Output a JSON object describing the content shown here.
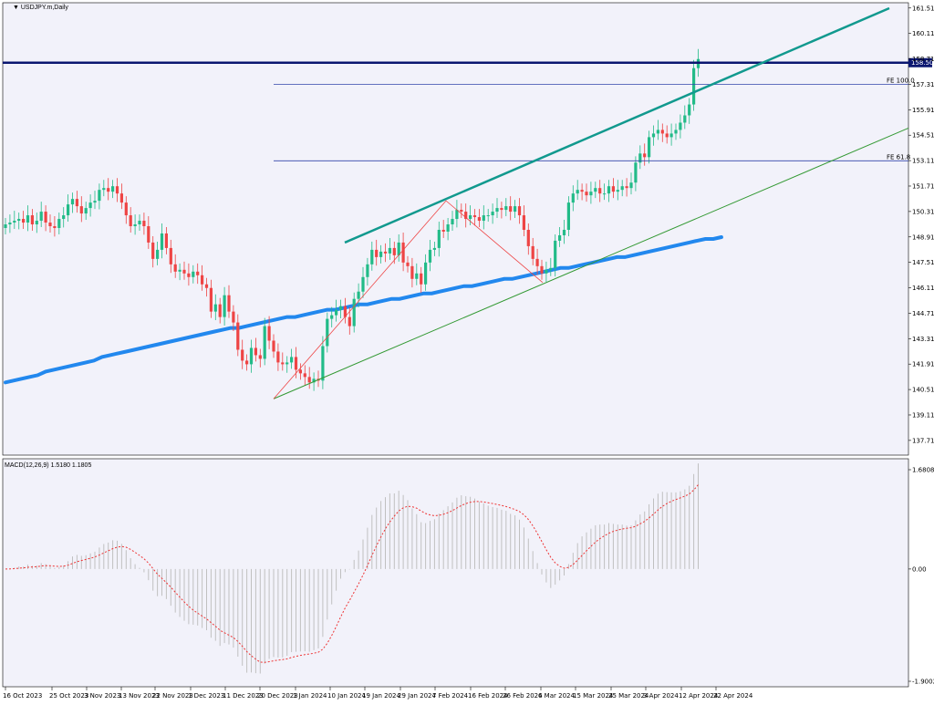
{
  "chart_data": {
    "type": "candlestick",
    "title": "USDJPY.m,Daily",
    "price_axis": {
      "ylim": [
        136.9,
        161.8
      ],
      "ticks": [
        "161.510",
        "160.110",
        "158.710",
        "157.310",
        "155.910",
        "154.510",
        "153.110",
        "151.710",
        "150.310",
        "148.910",
        "147.510",
        "146.110",
        "144.710",
        "143.310",
        "141.910",
        "140.510",
        "139.110",
        "137.710"
      ]
    },
    "date_ticks": [
      "16 Oct 2023",
      "25 Oct 2023",
      "3 Nov 2023",
      "13 Nov 2023",
      "22 Nov 2023",
      "1 Dec 2023",
      "11 Dec 2023",
      "20 Dec 2023",
      "1 Jan 2024",
      "10 Jan 2024",
      "19 Jan 2024",
      "29 Jan 2024",
      "7 Feb 2024",
      "16 Feb 2024",
      "26 Feb 2024",
      "6 Mar 2024",
      "15 Mar 2024",
      "25 Mar 2024",
      "3 Apr 2024",
      "12 Apr 2024",
      "22 Apr 2024"
    ],
    "close_series": [
      149.6,
      149.7,
      149.8,
      149.9,
      149.7,
      150.1,
      149.6,
      149.8,
      150.3,
      149.7,
      149.5,
      149.4,
      149.9,
      150.1,
      150.7,
      151.0,
      150.6,
      150.2,
      150.5,
      150.8,
      150.9,
      151.5,
      151.6,
      151.4,
      151.7,
      151.3,
      150.8,
      150.1,
      149.5,
      149.6,
      149.8,
      149.5,
      148.6,
      147.7,
      148.2,
      149.1,
      148.3,
      147.4,
      147.0,
      147.1,
      146.9,
      146.7,
      147.0,
      146.8,
      146.3,
      146.1,
      144.8,
      145.2,
      144.5,
      145.7,
      144.8,
      144.2,
      142.7,
      142.1,
      141.9,
      142.8,
      142.4,
      142.2,
      144.0,
      143.2,
      142.6,
      142.0,
      141.9,
      142.0,
      142.3,
      141.6,
      141.4,
      141.2,
      140.9,
      141.1,
      141.0,
      142.9,
      144.4,
      144.6,
      144.9,
      145.1,
      144.5,
      144.0,
      145.5,
      145.9,
      146.7,
      147.4,
      148.2,
      147.8,
      148.1,
      148.0,
      148.3,
      147.9,
      148.6,
      147.5,
      147.3,
      146.6,
      146.9,
      146.3,
      147.5,
      148.2,
      148.3,
      149.3,
      149.2,
      149.6,
      149.9,
      150.4,
      150.3,
      149.9,
      150.1,
      150.0,
      149.8,
      150.1,
      150.1,
      150.3,
      150.5,
      150.4,
      150.6,
      150.3,
      150.6,
      150.1,
      149.3,
      148.4,
      147.7,
      147.3,
      146.9,
      147.1,
      147.2,
      148.7,
      149.0,
      149.3,
      150.8,
      151.3,
      151.5,
      151.4,
      151.2,
      151.4,
      151.6,
      151.3,
      151.3,
      151.7,
      151.4,
      151.5,
      151.7,
      151.6,
      151.9,
      153.0,
      153.5,
      153.3,
      154.4,
      154.6,
      154.8,
      154.6,
      154.4,
      154.6,
      154.8,
      155.2,
      155.6,
      156.2,
      158.2,
      158.7
    ],
    "moving_average_series": [
      140.9,
      141.0,
      141.1,
      141.2,
      141.3,
      141.5,
      141.6,
      141.7,
      141.8,
      141.9,
      142.0,
      142.1,
      142.3,
      142.4,
      142.5,
      142.6,
      142.7,
      142.8,
      142.9,
      143.0,
      143.1,
      143.2,
      143.3,
      143.4,
      143.5,
      143.6,
      143.7,
      143.8,
      143.9,
      143.9,
      144.0,
      144.1,
      144.2,
      144.3,
      144.4,
      144.5,
      144.5,
      144.6,
      144.7,
      144.8,
      144.9,
      144.9,
      145.0,
      145.1,
      145.2,
      145.2,
      145.3,
      145.4,
      145.5,
      145.5,
      145.6,
      145.7,
      145.8,
      145.8,
      145.9,
      146.0,
      146.1,
      146.2,
      146.2,
      146.3,
      146.4,
      146.5,
      146.6,
      146.6,
      146.7,
      146.8,
      146.9,
      147.0,
      147.1,
      147.2,
      147.2,
      147.3,
      147.4,
      147.5,
      147.6,
      147.7,
      147.8,
      147.8,
      147.9,
      148.0,
      148.1,
      148.2,
      148.3,
      148.4,
      148.5,
      148.6,
      148.7,
      148.8,
      148.8,
      148.9
    ],
    "horizontal_lines": [
      {
        "label": "158.500",
        "price": 158.5
      },
      {
        "label": "FE 100.0",
        "price": 157.3
      },
      {
        "label": "FE 61.8",
        "price": 153.1
      }
    ],
    "macd": {
      "title": "MACD(12,26,9) 1.5180 1.1805",
      "ticks": [
        "1.6808",
        "0.00",
        "-1.9002"
      ],
      "ylim": [
        -1.9002,
        1.6808
      ]
    },
    "colors": {
      "bull": "#22bb88",
      "bear": "#ee4444",
      "ma": "#2288ee",
      "channel": "#11998e",
      "support": "#339933",
      "fib": "#ee4444",
      "level": "#0a1670",
      "fe_line": "#3344aa",
      "macd_hist": "#c0c0c0",
      "macd_signal": "#ee3333"
    }
  }
}
